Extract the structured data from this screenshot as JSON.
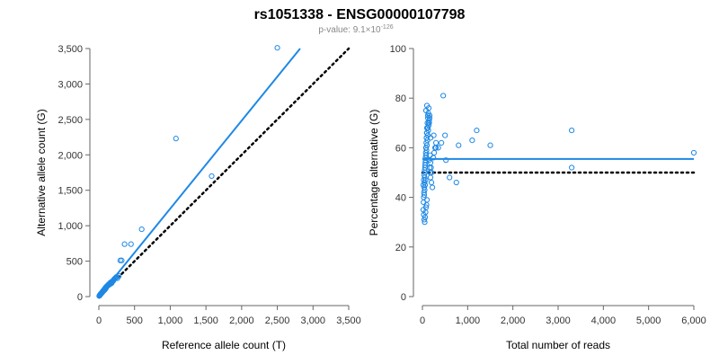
{
  "title": "rs1051338 - ENSG00000107798",
  "pvalue": {
    "prefix": "p-value: 9.1×10",
    "exponent": "-126"
  },
  "colors": {
    "points": "#1E88E5",
    "fit": "#1E88E5",
    "reference": "#000000"
  },
  "chart_data": [
    {
      "type": "scatter",
      "xlabel": "Reference allele count (T)",
      "ylabel": "Alternative allele count (G)",
      "xlim": [
        0,
        3500
      ],
      "ylim": [
        0,
        3500
      ],
      "xticks": [
        "0",
        "500",
        "1,000",
        "1,500",
        "2,000",
        "2,500",
        "3,000",
        "3,500"
      ],
      "yticks": [
        "0",
        "500",
        "1,000",
        "1,500",
        "2,000",
        "2,500",
        "3,000",
        "3,500"
      ],
      "fit_line": {
        "x": [
          0,
          2820
        ],
        "y": [
          0,
          3500
        ]
      },
      "reference_line": {
        "x": [
          0,
          3500
        ],
        "y": [
          0,
          3500
        ]
      },
      "x": [
        5,
        10,
        15,
        20,
        25,
        30,
        35,
        40,
        45,
        50,
        55,
        60,
        65,
        70,
        75,
        80,
        85,
        90,
        95,
        100,
        110,
        120,
        130,
        140,
        150,
        160,
        175,
        180,
        200,
        220,
        240,
        260,
        280,
        300,
        320,
        360,
        450,
        600,
        1080,
        1580,
        2500,
        12,
        18,
        22,
        28,
        33,
        38,
        42,
        48,
        52,
        58,
        62,
        68,
        72,
        78,
        82,
        88,
        92,
        98,
        105,
        115,
        125,
        135,
        145,
        155,
        165,
        185,
        210,
        230,
        250
      ],
      "y": [
        8,
        15,
        20,
        30,
        35,
        40,
        45,
        55,
        60,
        65,
        70,
        75,
        80,
        85,
        90,
        95,
        100,
        110,
        115,
        120,
        140,
        150,
        160,
        165,
        170,
        180,
        200,
        190,
        220,
        250,
        270,
        260,
        290,
        510,
        510,
        740,
        740,
        950,
        2230,
        1700,
        3510,
        20,
        25,
        35,
        40,
        45,
        50,
        55,
        60,
        70,
        75,
        85,
        90,
        95,
        100,
        110,
        115,
        125,
        130,
        140,
        150,
        160,
        170,
        180,
        190,
        200,
        215,
        240,
        260,
        280
      ]
    },
    {
      "type": "scatter",
      "xlabel": "Total number of reads",
      "ylabel": "Percentage alternative (G)",
      "xlim": [
        0,
        6000
      ],
      "ylim": [
        0,
        100
      ],
      "xticks": [
        "0",
        "1,000",
        "2,000",
        "3,000",
        "4,000",
        "5,000",
        "6,000"
      ],
      "yticks": [
        "0",
        "20",
        "40",
        "60",
        "80",
        "100"
      ],
      "fit_line": {
        "x": [
          0,
          6000
        ],
        "y": [
          55.5,
          55.5
        ]
      },
      "reference_line": {
        "x": [
          0,
          6000
        ],
        "y": [
          50,
          50
        ]
      },
      "x": [
        20,
        25,
        30,
        35,
        40,
        45,
        50,
        55,
        60,
        65,
        70,
        75,
        80,
        85,
        90,
        95,
        100,
        110,
        120,
        130,
        140,
        150,
        160,
        170,
        180,
        200,
        220,
        240,
        260,
        280,
        300,
        20,
        30,
        40,
        50,
        60,
        70,
        80,
        90,
        100,
        110,
        120,
        130,
        140,
        150,
        160,
        170,
        180,
        190,
        200,
        30,
        40,
        50,
        60,
        70,
        80,
        90,
        100,
        40,
        50,
        60,
        70,
        80,
        90,
        100,
        120,
        140,
        160,
        350,
        420,
        460,
        500,
        520,
        600,
        750,
        800,
        1100,
        1200,
        1500,
        3300,
        3300,
        6000,
        80,
        100,
        120,
        150,
        180,
        250,
        300
      ],
      "y": [
        35,
        38,
        40,
        42,
        44,
        46,
        48,
        50,
        52,
        54,
        56,
        58,
        60,
        62,
        64,
        66,
        68,
        70,
        72,
        74,
        76,
        55,
        52,
        50,
        48,
        46,
        44,
        56,
        58,
        60,
        62,
        45,
        47,
        49,
        51,
        53,
        55,
        57,
        59,
        61,
        63,
        65,
        67,
        69,
        71,
        73,
        57,
        54,
        52,
        50,
        33,
        31,
        30,
        32,
        34,
        36,
        37,
        39,
        41,
        43,
        45,
        47,
        60,
        64,
        66,
        68,
        70,
        72,
        60,
        62,
        81,
        65,
        55,
        48,
        46,
        61,
        63,
        67,
        61,
        67,
        52,
        58,
        75,
        77,
        73,
        70,
        64,
        65,
        60
      ]
    }
  ]
}
